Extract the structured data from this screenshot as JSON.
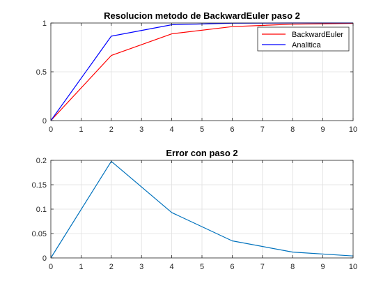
{
  "window": {
    "background": "#ffffff"
  },
  "chart_data": [
    {
      "type": "line",
      "title": "Resolucion metodo de BackwardEuler paso 2",
      "xlabel": "",
      "ylabel": "",
      "xlim": [
        0,
        10
      ],
      "ylim": [
        0,
        1
      ],
      "x_ticks": [
        0,
        1,
        2,
        3,
        4,
        5,
        6,
        7,
        8,
        9,
        10
      ],
      "y_ticks": [
        0,
        0.5,
        1
      ],
      "y_tick_labels": [
        "0",
        "0.5",
        "1"
      ],
      "grid": true,
      "legend_position": "top-right",
      "series": [
        {
          "name": "BackwardEuler",
          "color": "#ff0000",
          "x": [
            0,
            2,
            4,
            6,
            8,
            10
          ],
          "y": [
            0,
            0.667,
            0.889,
            0.963,
            0.988,
            0.996
          ]
        },
        {
          "name": "Analitica",
          "color": "#0000ff",
          "x": [
            0,
            2,
            4,
            6,
            8,
            10
          ],
          "y": [
            0,
            0.865,
            0.982,
            0.998,
            1.0,
            1.0
          ]
        }
      ]
    },
    {
      "type": "line",
      "title": "Error con paso 2",
      "xlabel": "",
      "ylabel": "",
      "xlim": [
        0,
        10
      ],
      "ylim": [
        0,
        0.2
      ],
      "x_ticks": [
        0,
        1,
        2,
        3,
        4,
        5,
        6,
        7,
        8,
        9,
        10
      ],
      "y_ticks": [
        0,
        0.05,
        0.1,
        0.15,
        0.2
      ],
      "y_tick_labels": [
        "0",
        "0.05",
        "0.1",
        "0.15",
        "0.2"
      ],
      "grid": true,
      "series": [
        {
          "color": "#0072bd",
          "x": [
            0,
            2,
            4,
            6,
            8,
            10
          ],
          "y": [
            0,
            0.198,
            0.093,
            0.035,
            0.012,
            0.004
          ]
        }
      ]
    }
  ]
}
